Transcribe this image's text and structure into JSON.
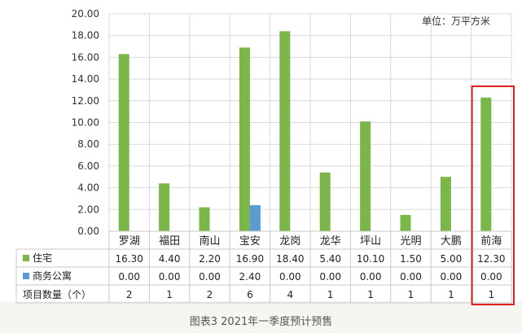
{
  "figure_caption": "图表3 2021年一季度预计预售",
  "chart_data": {
    "type": "bar",
    "unit_label": "单位：万平方米",
    "categories": [
      "罗湖",
      "福田",
      "南山",
      "宝安",
      "龙岗",
      "龙华",
      "坪山",
      "光明",
      "大鹏",
      "前海"
    ],
    "ylim": [
      0,
      20
    ],
    "yticks": [
      "0.00",
      "2.00",
      "4.00",
      "6.00",
      "8.00",
      "10.00",
      "12.00",
      "14.00",
      "16.00",
      "18.00",
      "20.00"
    ],
    "grid": true,
    "series": [
      {
        "name": "住宅",
        "color": "#7ab648",
        "values": [
          16.3,
          4.4,
          2.2,
          16.9,
          18.4,
          5.4,
          10.1,
          1.5,
          5.0,
          12.3
        ],
        "labels": [
          "16.30",
          "4.40",
          "2.20",
          "16.90",
          "18.40",
          "5.40",
          "10.10",
          "1.50",
          "5.00",
          "12.30"
        ]
      },
      {
        "name": "商务公寓",
        "color": "#5b9bd5",
        "values": [
          0,
          0,
          0,
          2.4,
          0,
          0,
          0,
          0,
          0,
          0
        ],
        "labels": [
          "0.00",
          "0.00",
          "0.00",
          "2.40",
          "0.00",
          "0.00",
          "0.00",
          "0.00",
          "0.00",
          "0.00"
        ]
      }
    ],
    "table_extra_row": {
      "name": "项目数量（个）",
      "labels": [
        "2",
        "1",
        "2",
        "6",
        "4",
        "1",
        "1",
        "1",
        "1",
        "1"
      ]
    },
    "highlight_category": "前海",
    "highlight_color": "#e02020"
  }
}
